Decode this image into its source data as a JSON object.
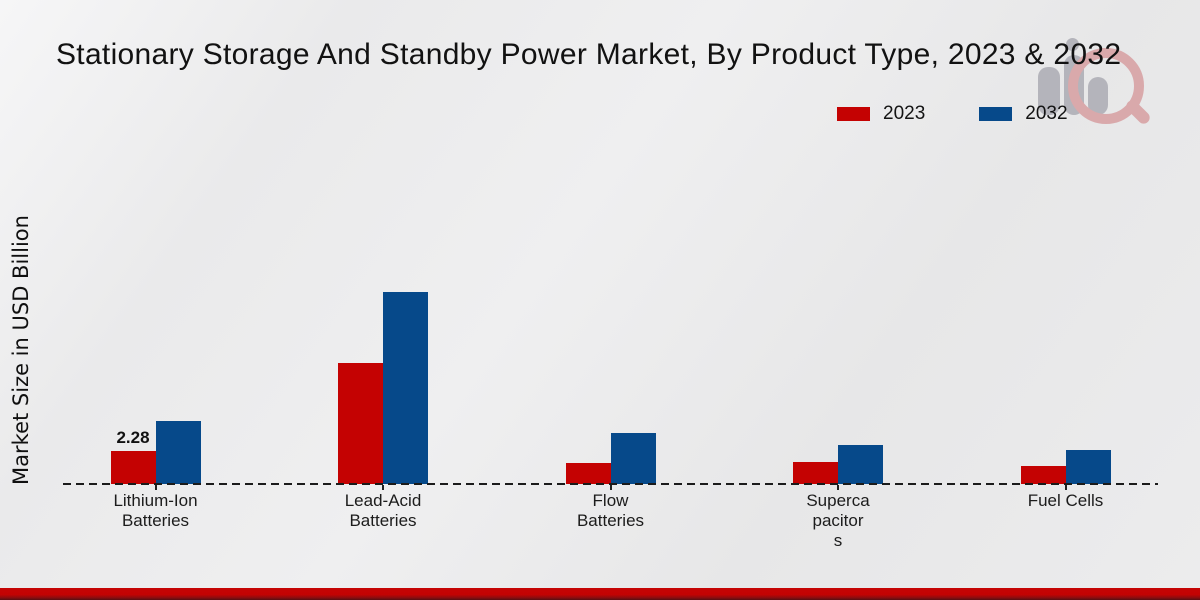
{
  "header": {
    "title": "Stationary Storage And Standby Power Market, By Product Type, 2023 & 2032"
  },
  "axes": {
    "y_label": "Market Size in USD Billion"
  },
  "watermark": {
    "name": "market-research-future-logo",
    "bar_color": "#b4b4bb",
    "ring_color": "#d9a9ab"
  },
  "footer": {
    "band_color": "#c30303"
  },
  "chart_data": {
    "type": "bar",
    "title": "Stationary Storage And Standby Power Market, By Product Type, 2023 & 2032",
    "xlabel": "",
    "ylabel": "Market Size in USD Billion",
    "categories": [
      "Lithium-Ion Batteries",
      "Lead-Acid Batteries",
      "Flow Batteries",
      "Supercapacitors",
      "Fuel Cells"
    ],
    "category_label_lines": [
      [
        "Lithium-Ion",
        "Batteries"
      ],
      [
        "Lead-Acid",
        "Batteries"
      ],
      [
        "Flow",
        "Batteries"
      ],
      [
        "Superca",
        "pacitor",
        "s"
      ],
      [
        "Fuel Cells"
      ]
    ],
    "series": [
      {
        "name": "2023",
        "color": "#c40202",
        "values": [
          2.28,
          8.36,
          1.45,
          1.52,
          1.25
        ]
      },
      {
        "name": "2032",
        "color": "#06498a",
        "values": [
          4.35,
          13.29,
          3.53,
          2.7,
          2.35
        ]
      }
    ],
    "annotations": [
      {
        "category_index": 0,
        "series_index": 0,
        "text": "2.28"
      }
    ],
    "ylim": [
      0,
      14
    ],
    "gridlines": false,
    "baseline_style": "dashed",
    "legend_position": "top-right"
  }
}
